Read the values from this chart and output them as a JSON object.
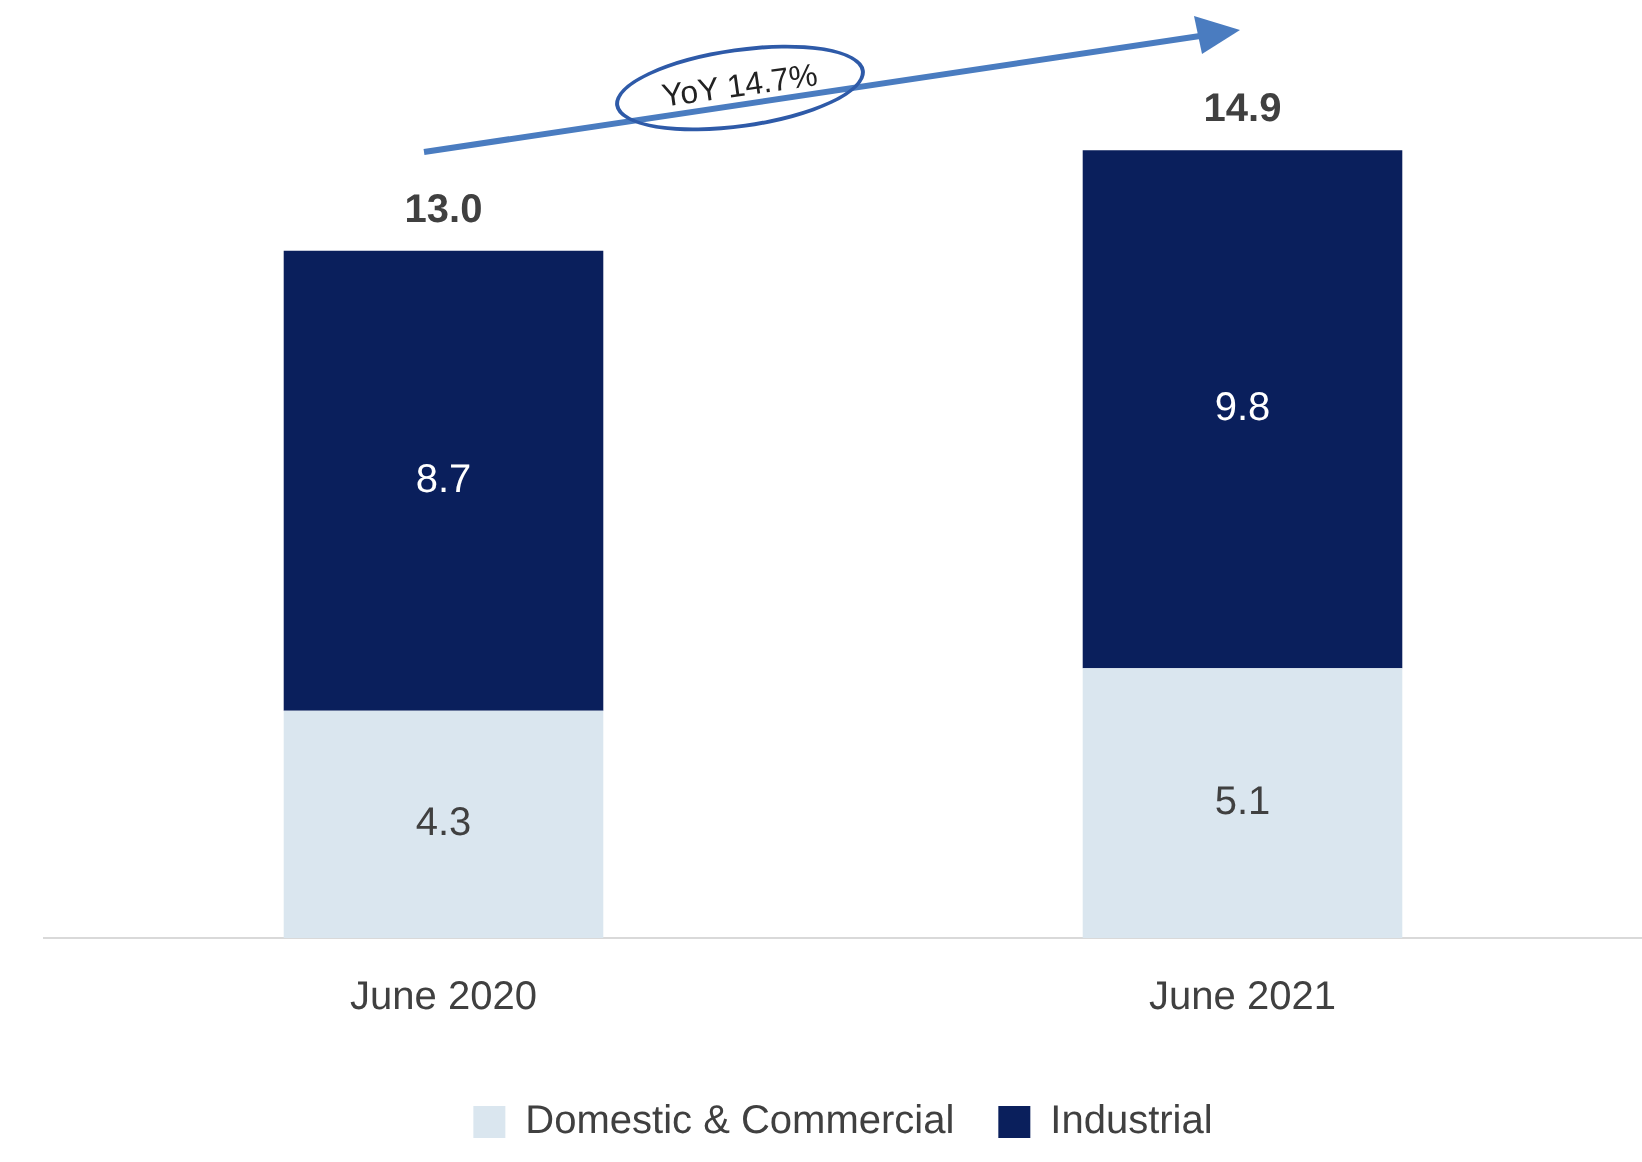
{
  "chart_data": {
    "type": "bar",
    "stacked": true,
    "categories": [
      "June 2020",
      "June 2021"
    ],
    "series": [
      {
        "name": "Domestic & Commercial",
        "color": "#dae6ef",
        "values": [
          4.3,
          5.1
        ]
      },
      {
        "name": "Industrial",
        "color": "#0a1f5c",
        "values": [
          8.7,
          9.8
        ]
      }
    ],
    "data_labels": true,
    "totals": [
      "13.0",
      "14.9"
    ],
    "annotations": [
      "YoY 14.7%"
    ],
    "legend": "bottom",
    "grid": false
  }
}
